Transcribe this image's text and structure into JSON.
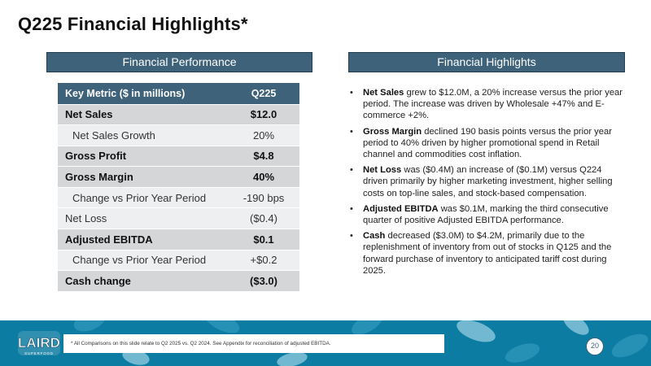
{
  "slide": {
    "title": "Q225 Financial Highlights*",
    "page_number": "20"
  },
  "left_panel": {
    "header": "Financial Performance",
    "table": {
      "columns": [
        "Key Metric ($ in millions)",
        "Q225"
      ],
      "rows": [
        {
          "metric": "Net Sales",
          "value": "$12.0",
          "style": "dark"
        },
        {
          "metric": "Net Sales Growth",
          "value": "20%",
          "style": "light-indent"
        },
        {
          "metric": "Gross Profit",
          "value": "$4.8",
          "style": "dark"
        },
        {
          "metric": "Gross Margin",
          "value": "40%",
          "style": "dark"
        },
        {
          "metric": "Change vs Prior Year Period",
          "value": "-190 bps",
          "style": "light-indent"
        },
        {
          "metric": "Net Loss",
          "value": "($0.4)",
          "style": "light"
        },
        {
          "metric": "Adjusted EBITDA",
          "value": "$0.1",
          "style": "dark"
        },
        {
          "metric": "Change vs Prior Year Period",
          "value": "+$0.2",
          "style": "light-indent"
        },
        {
          "metric": "Cash change",
          "value": "($3.0)",
          "style": "dark"
        }
      ]
    }
  },
  "right_panel": {
    "header": "Financial Highlights",
    "bullets": [
      {
        "term": "Net Sales",
        "text": " grew to $12.0M, a 20% increase versus the prior year period. The increase was driven by Wholesale +47% and E-commerce +2%."
      },
      {
        "term": "Gross Margin",
        "text": " declined 190 basis points versus the prior year period to 40% driven by higher promotional spend in Retail channel and commodities cost inflation."
      },
      {
        "term": "Net Loss",
        "text": " was ($0.4M) an increase of ($0.1M) versus Q224 driven primarily by higher marketing investment, higher selling costs on top-line sales, and stock-based compensation."
      },
      {
        "term": "Adjusted EBITDA",
        "text": " was $0.1M, marking the third consecutive quarter of positive Adjusted EBITDA performance."
      },
      {
        "term": "Cash",
        "text": " decreased ($3.0M) to $4.2M, primarily due to the replenishment of inventory from out of stocks in Q125 and the forward purchase of inventory to anticipated tariff cost during 2025."
      }
    ]
  },
  "footer": {
    "footnote": "* All Comparisons on this slide relate to Q2 2025 vs. Q2 2024. See Appendix for reconciliation of adjusted EBITDA.",
    "logo_text": "LAIRD",
    "logo_subtext": "SUPERFOOD"
  },
  "colors": {
    "header_bg": "#3d6279",
    "row_dark": "#d4d6d8",
    "row_light": "#eeeff0",
    "footer_band": "#0d7ca3"
  }
}
